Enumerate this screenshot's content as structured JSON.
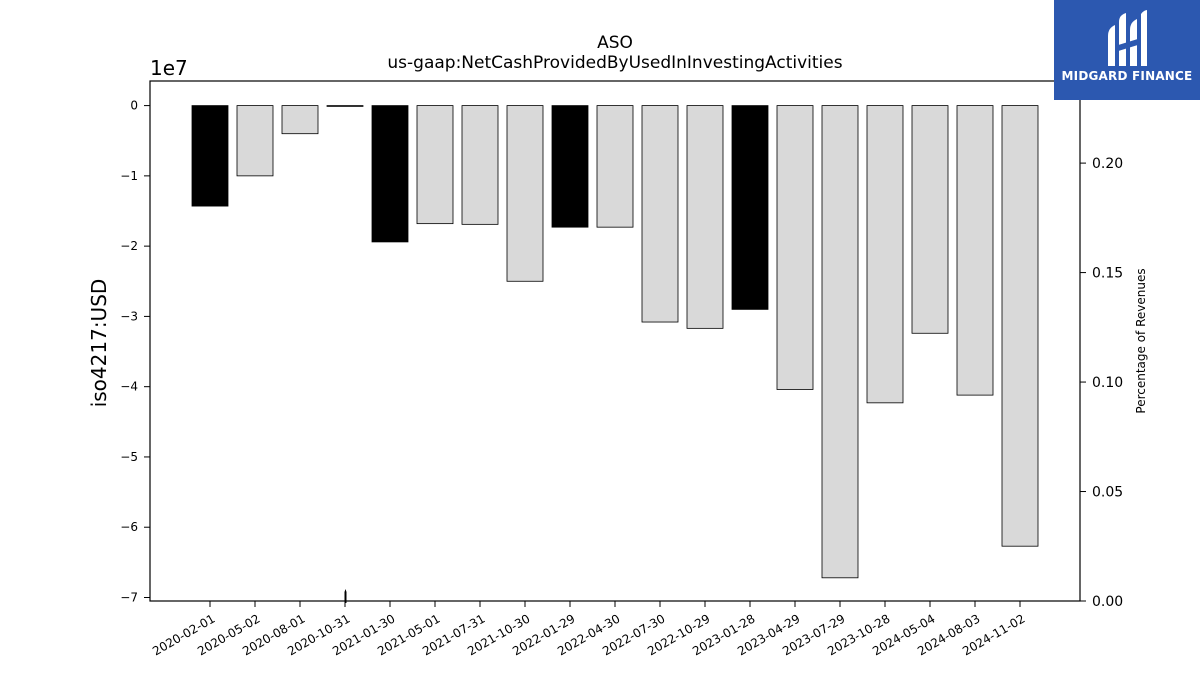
{
  "chart_data": {
    "type": "bar",
    "title": "ASO",
    "subtitle": "us-gaap:NetCashProvidedByUsedInInvestingActivities",
    "ylabel": "iso4217:USD",
    "y_offset_label": "1e7",
    "y2label": "Percentage of Revenues",
    "ylim": [
      -7.05,
      0.35
    ],
    "y2lim": [
      0.0,
      0.2375
    ],
    "yticks": [
      "0",
      "−1",
      "−2",
      "−3",
      "−4",
      "−5",
      "−6",
      "−7"
    ],
    "y2ticks": [
      "0.00",
      "0.05",
      "0.10",
      "0.15",
      "0.20"
    ],
    "categories": [
      "2020-02-01",
      "2020-05-02",
      "2020-08-01",
      "2020-10-31",
      "2021-01-30",
      "2021-05-01",
      "2021-07-31",
      "2021-10-30",
      "2022-01-29",
      "2022-04-30",
      "2022-07-30",
      "2022-10-29",
      "2023-01-28",
      "2023-04-29",
      "2023-07-29",
      "2023-10-28",
      "2024-05-04",
      "2024-08-03",
      "2024-11-02"
    ],
    "values": [
      -14300000,
      -10000000,
      -4000000,
      0,
      -19400000,
      -16800000,
      -16900000,
      -25000000,
      -17300000,
      -17300000,
      -30800000,
      -31700000,
      -29000000,
      -40400000,
      -67200000,
      -42300000,
      -32400000,
      -41200000,
      -62700000
    ],
    "highlight": [
      true,
      false,
      false,
      false,
      true,
      false,
      false,
      false,
      true,
      false,
      false,
      false,
      true,
      false,
      false,
      false,
      false,
      false,
      false
    ],
    "colors": {
      "highlight": "#000000",
      "normal": "#d9d9d9",
      "edge": "#000000"
    }
  },
  "logo": {
    "text": "MIDGARD FINANCE",
    "background": "#2c58b0"
  }
}
